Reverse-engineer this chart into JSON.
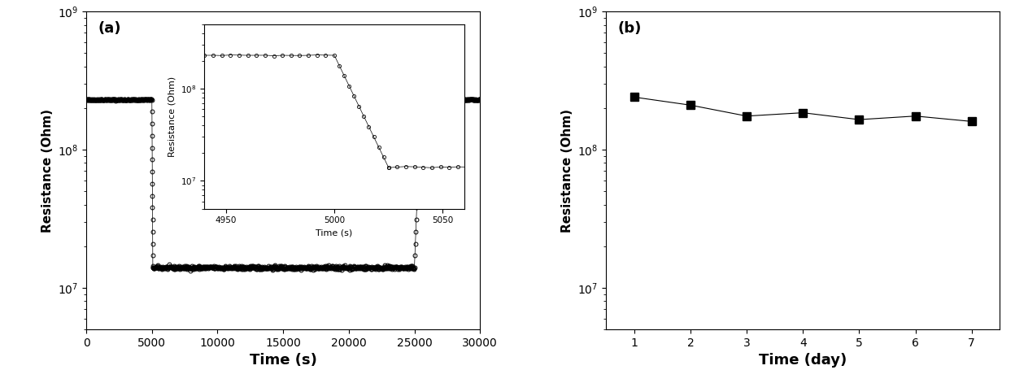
{
  "panel_a": {
    "label": "(a)",
    "ylabel": "Resistance (Ohm)",
    "xlabel": "Time (s)",
    "xlim": [
      0,
      30000
    ],
    "ylim": [
      5000000.0,
      1000000000.0
    ],
    "xticks": [
      0,
      5000,
      10000,
      15000,
      20000,
      25000,
      30000
    ],
    "high_resistance": 230000000.0,
    "low_resistance": 14000000.0,
    "transition_down_start": 5000,
    "transition_down_npts": 15,
    "transition_down_duration": 70,
    "transition_up_start": 25000,
    "transition_up_npts": 15,
    "transition_up_duration": 500,
    "inset": {
      "xlim": [
        4940,
        5060
      ],
      "ylim": [
        5000000.0,
        500000000.0
      ],
      "xticks": [
        4950,
        5000,
        5050
      ],
      "xlabel": "Time (s)",
      "ylabel": "Resistance (Ohm)"
    }
  },
  "panel_b": {
    "label": "(b)",
    "ylabel": "Resistance (Ohm)",
    "xlabel": "Time (day)",
    "xlim": [
      0.5,
      7.5
    ],
    "ylim": [
      5000000.0,
      1000000000.0
    ],
    "xticks": [
      1,
      2,
      3,
      4,
      5,
      6,
      7
    ],
    "days": [
      1,
      2,
      3,
      4,
      5,
      6,
      7
    ],
    "resistances": [
      240000000.0,
      210000000.0,
      175000000.0,
      185000000.0,
      165000000.0,
      175000000.0,
      160000000.0
    ]
  },
  "marker_color": "black",
  "line_color": "black",
  "marker_size_a": 3.5,
  "marker_size_b": 7
}
